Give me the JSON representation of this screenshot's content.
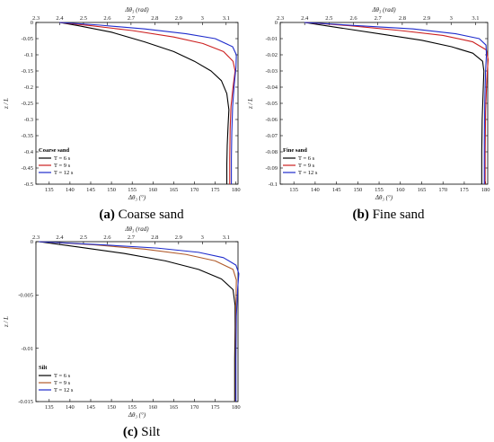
{
  "chart_data": [
    {
      "type": "line",
      "caption_letter": "(a)",
      "caption_text": "Coarse sand",
      "legend_title": "Coarse sand",
      "top_xlabel": "Δθ₃ (rad)",
      "bottom_xlabel": "Δθ₃ (°)",
      "ylabel": "z / L",
      "top_xlim": [
        2.3,
        3.15
      ],
      "top_xticks": [
        "2.3",
        "2.4",
        "2.5",
        "2.6",
        "2.7",
        "2.8",
        "2.9",
        "3",
        "3.1"
      ],
      "top_xtick_values": [
        2.3,
        2.4,
        2.5,
        2.6,
        2.7,
        2.8,
        2.9,
        3.0,
        3.1
      ],
      "bottom_xlim": [
        131.8,
        180.5
      ],
      "bottom_xticks": [
        "135",
        "140",
        "145",
        "150",
        "155",
        "160",
        "165",
        "170",
        "175",
        "180"
      ],
      "bottom_xtick_values": [
        135,
        140,
        145,
        150,
        155,
        160,
        165,
        170,
        175,
        180
      ],
      "ylim": [
        -0.5,
        0
      ],
      "yticks": [
        "0",
        "-0.05",
        "-0.1",
        "-0.15",
        "-0.2",
        "-0.25",
        "-0.3",
        "-0.35",
        "-0.4",
        "-0.45",
        "-0.5"
      ],
      "ytick_values": [
        0,
        -0.05,
        -0.1,
        -0.15,
        -0.2,
        -0.25,
        -0.3,
        -0.35,
        -0.4,
        -0.45,
        -0.5
      ],
      "series": [
        {
          "name": "T = 6 s",
          "color": "#000000",
          "x": [
            137.5,
            142,
            150,
            158,
            165,
            170,
            174,
            176.5,
            177.8,
            178.3,
            178.1,
            177.9,
            177.8,
            177.8
          ],
          "y": [
            0,
            -0.01,
            -0.03,
            -0.06,
            -0.09,
            -0.12,
            -0.15,
            -0.18,
            -0.22,
            -0.27,
            -0.32,
            -0.38,
            -0.44,
            -0.5
          ]
        },
        {
          "name": "T = 9 s",
          "color": "#cc1f1f",
          "x": [
            137.5,
            145,
            155,
            165,
            172,
            177,
            179.3,
            179.8,
            179.3,
            178.8,
            178.6,
            178.5,
            178.5
          ],
          "y": [
            0,
            -0.01,
            -0.025,
            -0.045,
            -0.065,
            -0.09,
            -0.12,
            -0.15,
            -0.2,
            -0.26,
            -0.33,
            -0.42,
            -0.5
          ]
        },
        {
          "name": "T = 12 s",
          "color": "#1f2ccc",
          "x": [
            137.5,
            147,
            158,
            168,
            175,
            179.2,
            180.1,
            180.0,
            179.6,
            179.2,
            179.0,
            178.9,
            178.9
          ],
          "y": [
            0,
            -0.008,
            -0.02,
            -0.035,
            -0.05,
            -0.075,
            -0.1,
            -0.14,
            -0.19,
            -0.26,
            -0.34,
            -0.42,
            -0.5
          ]
        }
      ]
    },
    {
      "type": "line",
      "caption_letter": "(b)",
      "caption_text": "Fine sand",
      "legend_title": "Fine sand",
      "top_xlabel": "Δθ₃ (rad)",
      "bottom_xlabel": "Δθ₃ (°)",
      "ylabel": "z / L",
      "top_xlim": [
        2.3,
        3.15
      ],
      "top_xticks": [
        "2.3",
        "2.4",
        "2.5",
        "2.6",
        "2.7",
        "2.8",
        "2.9",
        "3",
        "3.1"
      ],
      "top_xtick_values": [
        2.3,
        2.4,
        2.5,
        2.6,
        2.7,
        2.8,
        2.9,
        3.0,
        3.1
      ],
      "bottom_xlim": [
        131.8,
        180.5
      ],
      "bottom_xticks": [
        "135",
        "140",
        "145",
        "150",
        "155",
        "160",
        "165",
        "170",
        "175",
        "180"
      ],
      "bottom_xtick_values": [
        135,
        140,
        145,
        150,
        155,
        160,
        165,
        170,
        175,
        180
      ],
      "ylim": [
        -0.1,
        0
      ],
      "yticks": [
        "0",
        "-0.01",
        "-0.02",
        "-0.03",
        "-0.04",
        "-0.05",
        "-0.06",
        "-0.07",
        "-0.08",
        "-0.09",
        "-0.1"
      ],
      "ytick_values": [
        0,
        -0.01,
        -0.02,
        -0.03,
        -0.04,
        -0.05,
        -0.06,
        -0.07,
        -0.08,
        -0.09,
        -0.1
      ],
      "series": [
        {
          "name": "T = 6 s",
          "color": "#000000",
          "x": [
            137.5,
            145,
            155,
            165,
            172,
            177,
            179.3,
            179.6,
            179.4,
            179.2,
            179.1,
            179.1
          ],
          "y": [
            0,
            -0.003,
            -0.007,
            -0.011,
            -0.015,
            -0.019,
            -0.024,
            -0.03,
            -0.045,
            -0.06,
            -0.08,
            -0.1
          ]
        },
        {
          "name": "T = 9 s",
          "color": "#cc1f1f",
          "x": [
            137.5,
            148,
            160,
            170,
            177,
            180.2,
            180.6,
            180.3,
            180.0,
            179.9,
            179.9
          ],
          "y": [
            0,
            -0.002,
            -0.005,
            -0.008,
            -0.012,
            -0.017,
            -0.023,
            -0.035,
            -0.055,
            -0.08,
            -0.1
          ]
        },
        {
          "name": "T = 12 s",
          "color": "#1f2ccc",
          "x": [
            137.5,
            150,
            163,
            173,
            178.5,
            180.1,
            180.2,
            180.0,
            179.8,
            179.7,
            179.7
          ],
          "y": [
            0,
            -0.002,
            -0.004,
            -0.007,
            -0.01,
            -0.014,
            -0.02,
            -0.03,
            -0.05,
            -0.075,
            -0.1
          ]
        }
      ]
    },
    {
      "type": "line",
      "caption_letter": "(c)",
      "caption_text": "Silt",
      "legend_title": "Silt",
      "top_xlabel": "Δθ₃ (rad)",
      "bottom_xlabel": "Δθ₃ (°)",
      "ylabel": "z / L",
      "top_xlim": [
        2.3,
        3.15
      ],
      "top_xticks": [
        "2.3",
        "2.4",
        "2.5",
        "2.6",
        "2.7",
        "2.8",
        "2.9",
        "3",
        "3.1"
      ],
      "top_xtick_values": [
        2.3,
        2.4,
        2.5,
        2.6,
        2.7,
        2.8,
        2.9,
        3.0,
        3.1
      ],
      "bottom_xlim": [
        131.8,
        180.5
      ],
      "bottom_xticks": [
        "135",
        "140",
        "145",
        "150",
        "155",
        "160",
        "165",
        "170",
        "175",
        "180"
      ],
      "bottom_xtick_values": [
        135,
        140,
        145,
        150,
        155,
        160,
        165,
        170,
        175,
        180
      ],
      "ylim": [
        -0.015,
        0
      ],
      "yticks": [
        "0",
        "-0.005",
        "-0.01",
        "-0.015"
      ],
      "ytick_values": [
        0,
        -0.005,
        -0.01,
        -0.015
      ],
      "series": [
        {
          "name": "T = 6 s",
          "color": "#000000",
          "x": [
            132.5,
            142,
            153,
            163,
            171,
            176.5,
            179.3,
            179.8,
            179.8,
            179.7,
            179.7
          ],
          "y": [
            0,
            -0.0005,
            -0.0011,
            -0.0018,
            -0.0026,
            -0.0035,
            -0.0045,
            -0.006,
            -0.008,
            -0.011,
            -0.015
          ]
        },
        {
          "name": "T = 9 s",
          "color": "#b05a2a",
          "x": [
            132.5,
            146,
            158,
            168,
            175,
            179.3,
            180.1,
            180.0,
            179.9,
            179.9
          ],
          "y": [
            0,
            -0.0003,
            -0.0007,
            -0.0012,
            -0.0018,
            -0.0026,
            -0.0036,
            -0.0055,
            -0.009,
            -0.015
          ]
        },
        {
          "name": "T = 12 s",
          "color": "#1f2ccc",
          "x": [
            132.5,
            148,
            161,
            171,
            177,
            180.0,
            180.7,
            180.4,
            180.1,
            180.0,
            180.0
          ],
          "y": [
            0,
            -0.0003,
            -0.0006,
            -0.001,
            -0.0015,
            -0.0022,
            -0.003,
            -0.0045,
            -0.007,
            -0.011,
            -0.015
          ]
        }
      ]
    }
  ]
}
